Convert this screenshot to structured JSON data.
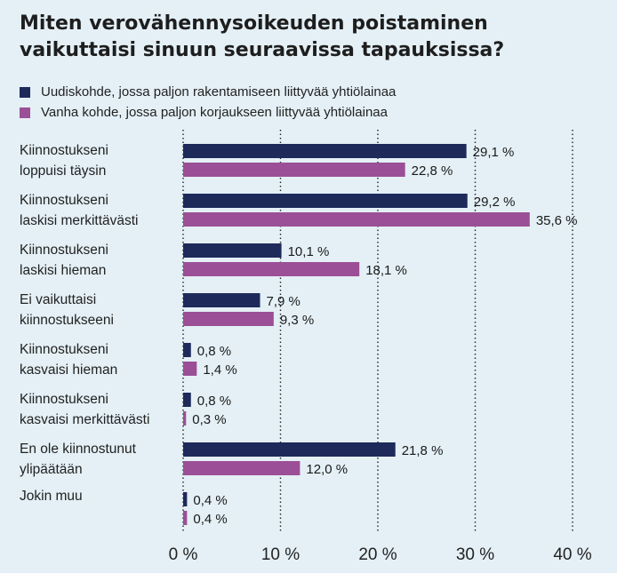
{
  "chart_data": {
    "type": "bar",
    "orientation": "horizontal",
    "title": "Miten verovähennysoikeuden poistaminen vaikuttaisi sinuun seuraavissa tapauksissa?",
    "categories": [
      "Kiinnostukseni\nloppuisi täysin",
      "Kiinnostukseni\nlaskisi merkittävästi",
      "Kiinnostukseni\nlaskisi hieman",
      "Ei vaikuttaisi\nkiinnostukseeni",
      "Kiinnostukseni\nkasvaisi hieman",
      "Kiinnostukseni\nkasvaisi merkittävästi",
      "En ole kiinnostunut\nylipäätään",
      "Jokin muu"
    ],
    "series": [
      {
        "name": "Uudiskohde, jossa paljon rakentamiseen liittyvää yhtiölainaa",
        "color": "#1e2a5a",
        "values": [
          29.1,
          29.2,
          10.1,
          7.9,
          0.8,
          0.8,
          21.8,
          0.4
        ],
        "labels": [
          "29,1 %",
          "29,2 %",
          "10,1 %",
          "7,9 %",
          "0,8 %",
          "0,8 %",
          "21,8 %",
          "0,4 %"
        ]
      },
      {
        "name": "Vanha kohde, jossa paljon korjaukseen liittyvää yhtiölainaa",
        "color": "#9b4f96",
        "values": [
          22.8,
          35.6,
          18.1,
          9.3,
          1.4,
          0.3,
          12.0,
          0.4
        ],
        "labels": [
          "22,8 %",
          "35,6 %",
          "18,1 %",
          "9,3 %",
          "1,4 %",
          "0,3 %",
          "12,0 %",
          "0,4 %"
        ]
      }
    ],
    "xlim": [
      0,
      40
    ],
    "xticks": [
      0,
      10,
      20,
      30,
      40
    ],
    "xtick_labels": [
      "0 %",
      "10 %",
      "20 %",
      "30 %",
      "40 %"
    ],
    "grid": "dotted vertical",
    "legend_position": "top-left"
  }
}
